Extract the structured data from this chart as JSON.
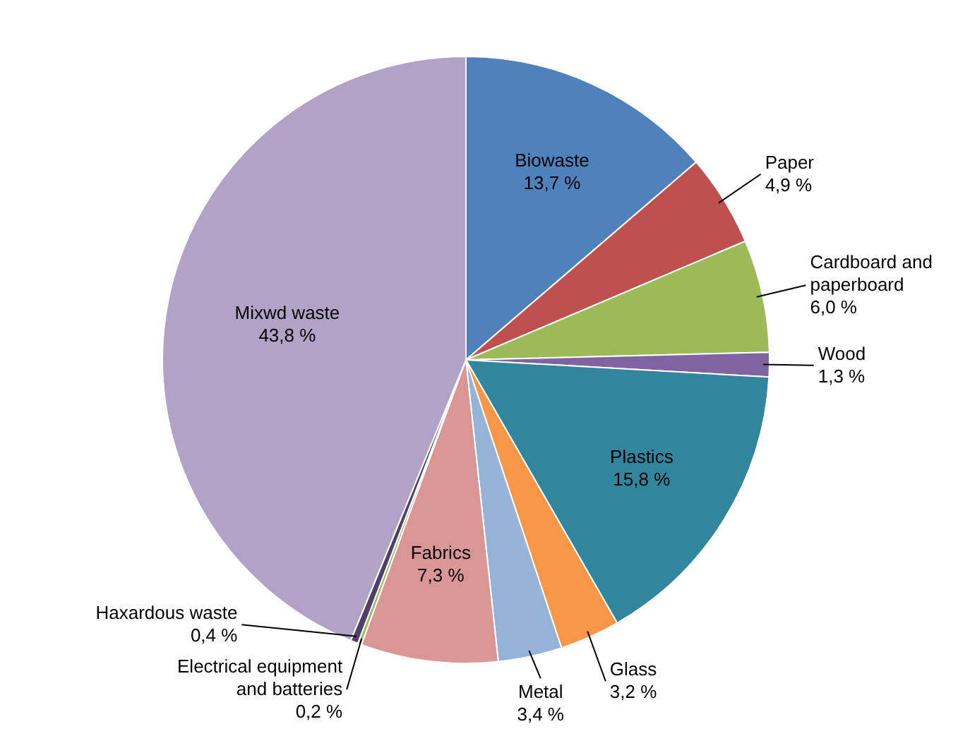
{
  "chart_data": {
    "type": "pie",
    "categories": [
      "Biowaste",
      "Paper",
      "Cardboard and paperboard",
      "Wood",
      "Plastics",
      "Glass",
      "Metal",
      "Fabrics",
      "Electrical equipment and batteries",
      "Haxardous waste",
      "Mixwd waste"
    ],
    "values": [
      13.7,
      4.9,
      6.0,
      1.3,
      15.8,
      3.2,
      3.4,
      7.3,
      0.2,
      0.4,
      43.8
    ],
    "colors": [
      "#4f81bd",
      "#c0504d",
      "#9bbb59",
      "#8064a2",
      "#31859c",
      "#f79646",
      "#95b3d7",
      "#d99694",
      "#9bbb59",
      "#4f3f6b",
      "#b3a2c7"
    ],
    "value_labels": [
      "13,7 %",
      "4,9 %",
      "6,0 %",
      "1,3 %",
      "15,8 %",
      "3,2 %",
      "3,4 %",
      "7,3 %",
      "0,2 %",
      "0,4 %",
      "43,8 %"
    ]
  }
}
